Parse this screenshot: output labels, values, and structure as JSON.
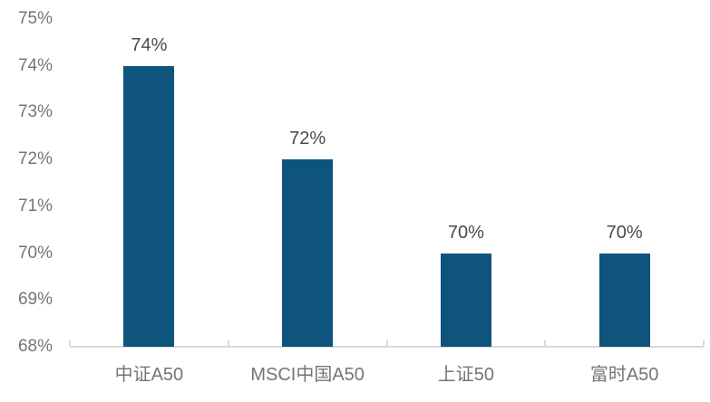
{
  "chart_data": {
    "type": "bar",
    "title": "",
    "categories": [
      "中证A50",
      "MSCI中国A50",
      "上证50",
      "富时A50"
    ],
    "values": [
      74,
      72,
      70,
      70
    ],
    "data_labels": [
      "74%",
      "72%",
      "70%",
      "70%"
    ],
    "y_ticks": [
      "68%",
      "69%",
      "70%",
      "71%",
      "72%",
      "73%",
      "74%",
      "75%"
    ],
    "ylim": [
      68,
      75
    ],
    "xlabel": "",
    "ylabel": "",
    "grid": false,
    "legend": false,
    "colors": {
      "bar": "#0e547c",
      "axis_line": "#d9d9d9",
      "axis_label": "#757575",
      "data_label": "#4a4a4a"
    }
  }
}
